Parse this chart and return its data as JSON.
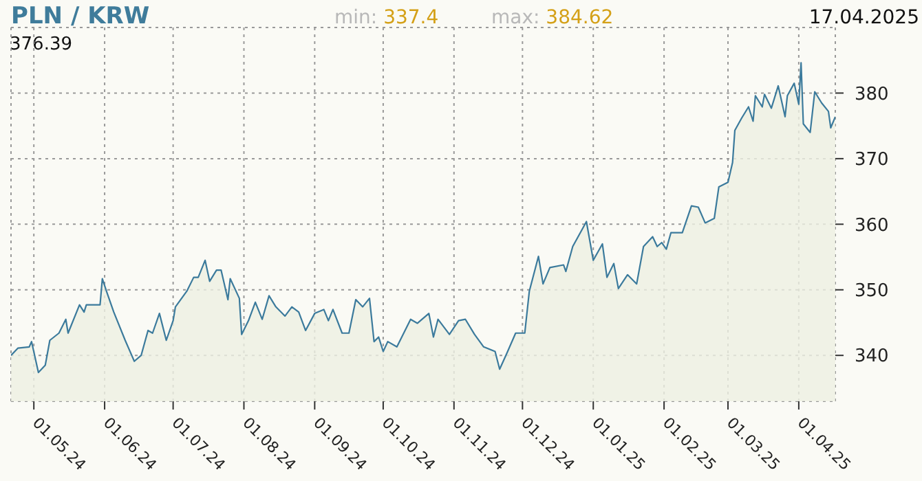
{
  "chart_data": {
    "type": "area",
    "title": "PLN / KRW",
    "annotations": [
      "min: 337.4",
      "max: 384.62",
      "17.04.2025",
      "376.39"
    ],
    "x": [
      "2024-04-21",
      "2024-04-24",
      "2024-04-29",
      "2024-04-30",
      "2024-05-03",
      "2024-05-06",
      "2024-05-08",
      "2024-05-12",
      "2024-05-15",
      "2024-05-16",
      "2024-05-21",
      "2024-05-23",
      "2024-05-24",
      "2024-05-30",
      "2024-05-31",
      "2024-06-02",
      "2024-06-05",
      "2024-06-10",
      "2024-06-14",
      "2024-06-17",
      "2024-06-20",
      "2024-06-22",
      "2024-06-25",
      "2024-06-28",
      "2024-07-01",
      "2024-07-02",
      "2024-07-07",
      "2024-07-10",
      "2024-07-12",
      "2024-07-15",
      "2024-07-17",
      "2024-07-20",
      "2024-07-22",
      "2024-07-25",
      "2024-07-26",
      "2024-07-30",
      "2024-07-31",
      "2024-08-03",
      "2024-08-06",
      "2024-08-09",
      "2024-08-12",
      "2024-08-15",
      "2024-08-19",
      "2024-08-22",
      "2024-08-25",
      "2024-08-28",
      "2024-09-01",
      "2024-09-05",
      "2024-09-07",
      "2024-09-09",
      "2024-09-13",
      "2024-09-16",
      "2024-09-19",
      "2024-09-22",
      "2024-09-25",
      "2024-09-27",
      "2024-09-29",
      "2024-10-01",
      "2024-10-03",
      "2024-10-07",
      "2024-10-13",
      "2024-10-16",
      "2024-10-21",
      "2024-10-23",
      "2024-10-25",
      "2024-10-30",
      "2024-11-03",
      "2024-11-06",
      "2024-11-10",
      "2024-11-14",
      "2024-11-19",
      "2024-11-21",
      "2024-11-24",
      "2024-11-28",
      "2024-12-02",
      "2024-12-04",
      "2024-12-08",
      "2024-12-10",
      "2024-12-13",
      "2024-12-19",
      "2024-12-20",
      "2024-12-23",
      "2024-12-29",
      "2025-01-01",
      "2025-01-05",
      "2025-01-07",
      "2025-01-10",
      "2025-01-12",
      "2025-01-16",
      "2025-01-20",
      "2025-01-23",
      "2025-01-27",
      "2025-01-29",
      "2025-01-31",
      "2025-02-02",
      "2025-02-04",
      "2025-02-09",
      "2025-02-13",
      "2025-02-16",
      "2025-02-19",
      "2025-02-23",
      "2025-02-25",
      "2025-03-01",
      "2025-03-03",
      "2025-03-04",
      "2025-03-07",
      "2025-03-10",
      "2025-03-12",
      "2025-03-13",
      "2025-03-16",
      "2025-03-17",
      "2025-03-20",
      "2025-03-23",
      "2025-03-26",
      "2025-03-27",
      "2025-03-30",
      "2025-04-01",
      "2025-04-02",
      "2025-04-03",
      "2025-04-06",
      "2025-04-08",
      "2025-04-11",
      "2025-04-14",
      "2025-04-15",
      "2025-04-17"
    ],
    "values": [
      340.0,
      341.1,
      341.3,
      342.1,
      337.4,
      338.5,
      342.3,
      343.4,
      345.5,
      343.4,
      347.7,
      346.6,
      347.7,
      347.7,
      351.7,
      349.6,
      346.6,
      342.3,
      339.1,
      340.0,
      343.8,
      343.4,
      346.4,
      342.3,
      345.3,
      347.4,
      349.8,
      351.9,
      351.9,
      354.5,
      351.3,
      353.0,
      353.0,
      348.5,
      351.7,
      348.7,
      343.2,
      345.3,
      348.1,
      345.5,
      349.1,
      347.4,
      346.0,
      347.4,
      346.6,
      343.8,
      346.4,
      347.0,
      345.3,
      347.0,
      343.4,
      343.4,
      348.5,
      347.4,
      348.7,
      342.1,
      342.8,
      340.6,
      342.1,
      341.3,
      345.5,
      344.9,
      346.4,
      342.8,
      345.5,
      343.2,
      345.3,
      345.5,
      343.2,
      341.3,
      340.6,
      337.9,
      340.2,
      343.4,
      343.4,
      349.8,
      355.1,
      350.9,
      353.4,
      353.8,
      352.8,
      356.6,
      360.4,
      354.5,
      357.0,
      351.9,
      354.0,
      350.2,
      352.3,
      350.9,
      356.6,
      358.1,
      356.6,
      357.2,
      356.2,
      358.7,
      358.7,
      362.8,
      362.6,
      360.2,
      360.9,
      365.7,
      366.4,
      369.4,
      374.3,
      376.2,
      377.9,
      375.7,
      379.6,
      377.9,
      379.8,
      377.7,
      381.1,
      376.4,
      379.6,
      381.5,
      378.3,
      384.62,
      375.3,
      374.0,
      380.2,
      378.5,
      377.2,
      374.7,
      376.39
    ],
    "color": "#3b7a9c",
    "xlim": [
      "2024-04-21",
      "2025-04-17"
    ],
    "xticks": [
      {
        "value": "2024-05-01",
        "label": "01.05.24"
      },
      {
        "value": "2024-06-01",
        "label": "01.06.24"
      },
      {
        "value": "2024-07-01",
        "label": "01.07.24"
      },
      {
        "value": "2024-08-01",
        "label": "01.08.24"
      },
      {
        "value": "2024-09-01",
        "label": "01.09.24"
      },
      {
        "value": "2024-10-01",
        "label": "01.10.24"
      },
      {
        "value": "2024-11-01",
        "label": "01.11.24"
      },
      {
        "value": "2024-12-01",
        "label": "01.12.24"
      },
      {
        "value": "2025-01-01",
        "label": "01.01.25"
      },
      {
        "value": "2025-02-01",
        "label": "01.02.25"
      },
      {
        "value": "2025-03-01",
        "label": "01.03.25"
      },
      {
        "value": "2025-04-01",
        "label": "01.04.25"
      }
    ],
    "ylim": [
      333,
      390
    ],
    "yticks": [
      340,
      350,
      360,
      370,
      380
    ],
    "grid": true
  }
}
